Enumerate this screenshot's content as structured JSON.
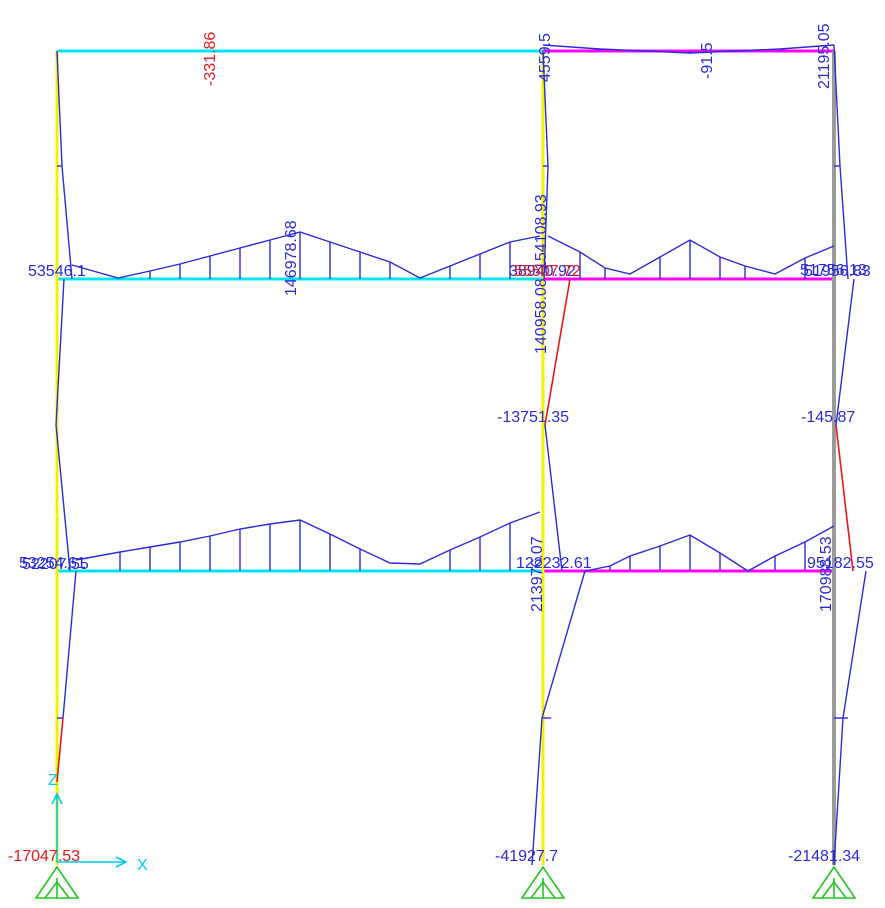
{
  "colors": {
    "beam_left": "#00e5f0",
    "beam_right": "#ff00ff",
    "column_yellow": "#f2f200",
    "column_gray": "#9a9a9a",
    "moment": "#2b2bd8",
    "label_blue": "#2b2bd8",
    "label_red": "#e81818",
    "support": "#22c522",
    "axis": "#00c8f0"
  },
  "labels": {
    "top_left_beam": "-331.86",
    "top_mid": "4559.5",
    "top_right_beam": "-91.5",
    "top_right": "21195.05",
    "l2_left": "53546.1",
    "l2_left_beam_mid": "146978.68",
    "l2_mid_up": "154108.93",
    "l2_mid_overlap_blue": "38940.92",
    "l2_mid_overlap_red": "55507.72",
    "l2_mid_down": "140958.08",
    "l2_right_a": "51756.13",
    "l2_right_b": "51956.83",
    "col_mid_center": "-13751.35",
    "col_right_center": "-145.87",
    "l1_left_a": "53254.61",
    "l1_left_b": "52207.55",
    "l1_mid_up": "213976.07",
    "l1_mid_right": "122232.61",
    "l1_right_up": "170988.53",
    "l1_right_b": "95182.55",
    "base_left": "-17047.53",
    "base_mid": "-41927.7",
    "base_right": "-21481.34"
  },
  "axis": {
    "z_label": "Z",
    "x_label": "X"
  }
}
